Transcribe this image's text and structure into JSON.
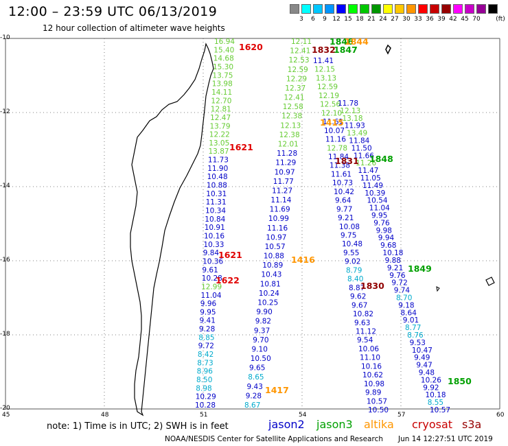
{
  "title": "12:00 – 23:59 UTC 06/13/2019",
  "subtitle": "12 hour collection of altimeter wave heights",
  "colorbar": {
    "colors": [
      "#888888",
      "#00ffff",
      "#00c8ff",
      "#0096ff",
      "#0000ff",
      "#00ff00",
      "#00c800",
      "#009600",
      "#ffff00",
      "#ffc800",
      "#ff9600",
      "#ff0000",
      "#c80000",
      "#960000",
      "#ff00ff",
      "#c800c8",
      "#960096",
      "#000000"
    ],
    "labels": [
      "3",
      "6",
      "9",
      "12",
      "15",
      "18",
      "21",
      "24",
      "27",
      "30",
      "33",
      "36",
      "39",
      "42",
      "45",
      "70"
    ],
    "unit": "(ft)"
  },
  "axes": {
    "lat_labels": [
      "-10",
      "-12",
      "-14",
      "-16",
      "-18",
      "-20"
    ],
    "lon_labels": [
      "45",
      "48",
      "51",
      "54",
      "57",
      "60"
    ]
  },
  "colors": {
    "jason2": "#0000c8",
    "jason3": "#00a000",
    "altika": "#ff9600",
    "cryosat": "#c80000",
    "s3a": "#960000",
    "light_green": "#66cc33",
    "cyan": "#00aacc",
    "map_outline": "#000000",
    "grid": "#555555"
  },
  "time_labels": [
    {
      "text": "1620",
      "color": "#e00000"
    },
    {
      "text": "1846",
      "color": "#00a000"
    },
    {
      "text": "1844",
      "color": "#ff9600"
    },
    {
      "text": "1832",
      "color": "#900000"
    },
    {
      "text": "1847",
      "color": "#00a000"
    },
    {
      "text": "1415",
      "color": "#ff9600"
    },
    {
      "text": "1621",
      "color": "#e00000"
    },
    {
      "text": "1831",
      "color": "#900000"
    },
    {
      "text": "1848",
      "color": "#00a000"
    },
    {
      "text": "1621",
      "color": "#e00000"
    },
    {
      "text": "1416",
      "color": "#ff9600"
    },
    {
      "text": "1622",
      "color": "#e00000"
    },
    {
      "text": "1849",
      "color": "#00a000"
    },
    {
      "text": "1830",
      "color": "#900000"
    },
    {
      "text": "1417",
      "color": "#ff9600"
    },
    {
      "text": "1850",
      "color": "#00a000"
    }
  ],
  "tracks": [
    {
      "name": "track-a",
      "values": [
        "16.94",
        "15.40",
        "14.68",
        "15.30",
        "13.75",
        "13.98",
        "14.11",
        "12.70",
        "12.81",
        "12.47",
        "13.79",
        "12.22",
        "13.05",
        "13.87",
        "11.73",
        "11.90",
        "10.48",
        "10.88",
        "10.31",
        "11.31",
        "10.34",
        "10.84",
        "10.91",
        "10.16",
        "10.33",
        "9.84",
        "10.36",
        "9.61",
        "10.28",
        "12.99",
        "11.04",
        "9.96",
        "9.95",
        "9.41",
        "9.28",
        "8.85",
        "9.72",
        "8.42",
        "8.73",
        "8.96",
        "8.50",
        "8.98",
        "10.29",
        "10.28"
      ],
      "colors": [
        "#66cc33",
        "#66cc33",
        "#66cc33",
        "#66cc33",
        "#66cc33",
        "#66cc33",
        "#66cc33",
        "#66cc33",
        "#66cc33",
        "#66cc33",
        "#66cc33",
        "#66cc33",
        "#66cc33",
        "#66cc33",
        "#0000c8",
        "#0000c8",
        "#0000c8",
        "#0000c8",
        "#0000c8",
        "#0000c8",
        "#0000c8",
        "#0000c8",
        "#0000c8",
        "#0000c8",
        "#0000c8",
        "#0000c8",
        "#0000c8",
        "#0000c8",
        "#0000c8",
        "#66cc33",
        "#0000c8",
        "#0000c8",
        "#0000c8",
        "#0000c8",
        "#0000c8",
        "#00aacc",
        "#0000c8",
        "#00aacc",
        "#00aacc",
        "#00aacc",
        "#00aacc",
        "#00aacc",
        "#0000c8",
        "#0000c8"
      ]
    },
    {
      "name": "track-b",
      "values": [
        "12.11",
        "12.41",
        "12.53",
        "12.59",
        "12.29",
        "12.37",
        "12.41",
        "12.58",
        "12.38",
        "12.13",
        "12.38",
        "12.01",
        "11.28",
        "11.29",
        "10.97",
        "11.77",
        "11.27",
        "11.14",
        "11.69",
        "10.99",
        "11.16",
        "10.97",
        "10.57",
        "10.88",
        "10.89",
        "10.43",
        "10.81",
        "10.24",
        "10.25",
        "9.90",
        "9.82",
        "9.37",
        "9.70",
        "9.10",
        "10.50",
        "9.65",
        "8.65",
        "9.43",
        "9.28",
        "8.67"
      ],
      "colors": [
        "#66cc33",
        "#66cc33",
        "#66cc33",
        "#66cc33",
        "#66cc33",
        "#66cc33",
        "#66cc33",
        "#66cc33",
        "#66cc33",
        "#66cc33",
        "#66cc33",
        "#66cc33",
        "#0000c8",
        "#0000c8",
        "#0000c8",
        "#0000c8",
        "#0000c8",
        "#0000c8",
        "#0000c8",
        "#0000c8",
        "#0000c8",
        "#0000c8",
        "#0000c8",
        "#0000c8",
        "#0000c8",
        "#0000c8",
        "#0000c8",
        "#0000c8",
        "#0000c8",
        "#0000c8",
        "#0000c8",
        "#0000c8",
        "#0000c8",
        "#0000c8",
        "#0000c8",
        "#0000c8",
        "#00aacc",
        "#0000c8",
        "#0000c8",
        "#00aacc"
      ]
    },
    {
      "name": "track-c",
      "values": [
        "11.41",
        "12.15",
        "13.13",
        "12.59",
        "12.19",
        "12.56",
        "12.10",
        "11.61",
        "10.07",
        "11.16",
        "12.78",
        "11.84",
        "11.38",
        "11.61",
        "10.73",
        "10.42",
        "9.64",
        "9.77",
        "9.21",
        "10.08",
        "9.75",
        "10.48",
        "9.55",
        "9.02",
        "8.79",
        "8.40",
        "8.87",
        "9.62",
        "9.67",
        "10.82",
        "9.63",
        "11.12",
        "9.54",
        "10.06",
        "11.10",
        "10.16",
        "10.62",
        "10.98",
        "9.89",
        "10.57",
        "10.50"
      ],
      "colors": [
        "#0000c8",
        "#66cc33",
        "#66cc33",
        "#66cc33",
        "#66cc33",
        "#66cc33",
        "#66cc33",
        "#0000c8",
        "#0000c8",
        "#0000c8",
        "#66cc33",
        "#0000c8",
        "#0000c8",
        "#0000c8",
        "#0000c8",
        "#0000c8",
        "#0000c8",
        "#0000c8",
        "#0000c8",
        "#0000c8",
        "#0000c8",
        "#0000c8",
        "#0000c8",
        "#0000c8",
        "#00aacc",
        "#00aacc",
        "#0000c8",
        "#0000c8",
        "#0000c8",
        "#0000c8",
        "#0000c8",
        "#0000c8",
        "#0000c8",
        "#0000c8",
        "#0000c8",
        "#0000c8",
        "#0000c8",
        "#0000c8",
        "#0000c8",
        "#0000c8",
        "#0000c8"
      ]
    },
    {
      "name": "track-d",
      "values": [
        "11.78",
        "12.13",
        "13.18",
        "11.93",
        "13.49",
        "11.84",
        "11.50",
        "11.66",
        "11.26",
        "11.47",
        "11.05",
        "11.49",
        "10.39",
        "10.54",
        "11.04",
        "9.95",
        "9.76",
        "9.98",
        "9.94",
        "9.68",
        "10.18",
        "9.88",
        "9.21",
        "9.76",
        "9.72",
        "9.74",
        "8.70",
        "9.18",
        "8.64",
        "9.01",
        "8.77",
        "8.76",
        "9.53",
        "10.47",
        "9.49",
        "9.47",
        "9.48",
        "10.26",
        "9.92",
        "10.18",
        "8.55",
        "10.57"
      ],
      "colors": [
        "#0000c8",
        "#66cc33",
        "#66cc33",
        "#0000c8",
        "#66cc33",
        "#0000c8",
        "#0000c8",
        "#0000c8",
        "#66cc33",
        "#0000c8",
        "#0000c8",
        "#0000c8",
        "#0000c8",
        "#0000c8",
        "#0000c8",
        "#0000c8",
        "#0000c8",
        "#0000c8",
        "#0000c8",
        "#0000c8",
        "#0000c8",
        "#0000c8",
        "#0000c8",
        "#0000c8",
        "#0000c8",
        "#0000c8",
        "#00aacc",
        "#0000c8",
        "#0000c8",
        "#0000c8",
        "#00aacc",
        "#00aacc",
        "#0000c8",
        "#0000c8",
        "#0000c8",
        "#0000c8",
        "#0000c8",
        "#0000c8",
        "#0000c8",
        "#0000c8",
        "#00aacc",
        "#0000c8"
      ]
    }
  ],
  "legend": {
    "note": "note:  1) Time is in UTC;  2) SWH is in feet",
    "jason2": "jason2",
    "jason3": "jason3",
    "altika": "altika",
    "cryosat": "cryosat",
    "s3a": "s3a"
  },
  "credit": "NOAA/NESDIS Center for Satellite Applications and Research",
  "stamp": "Jun 14 12:27:51 UTC 2019"
}
